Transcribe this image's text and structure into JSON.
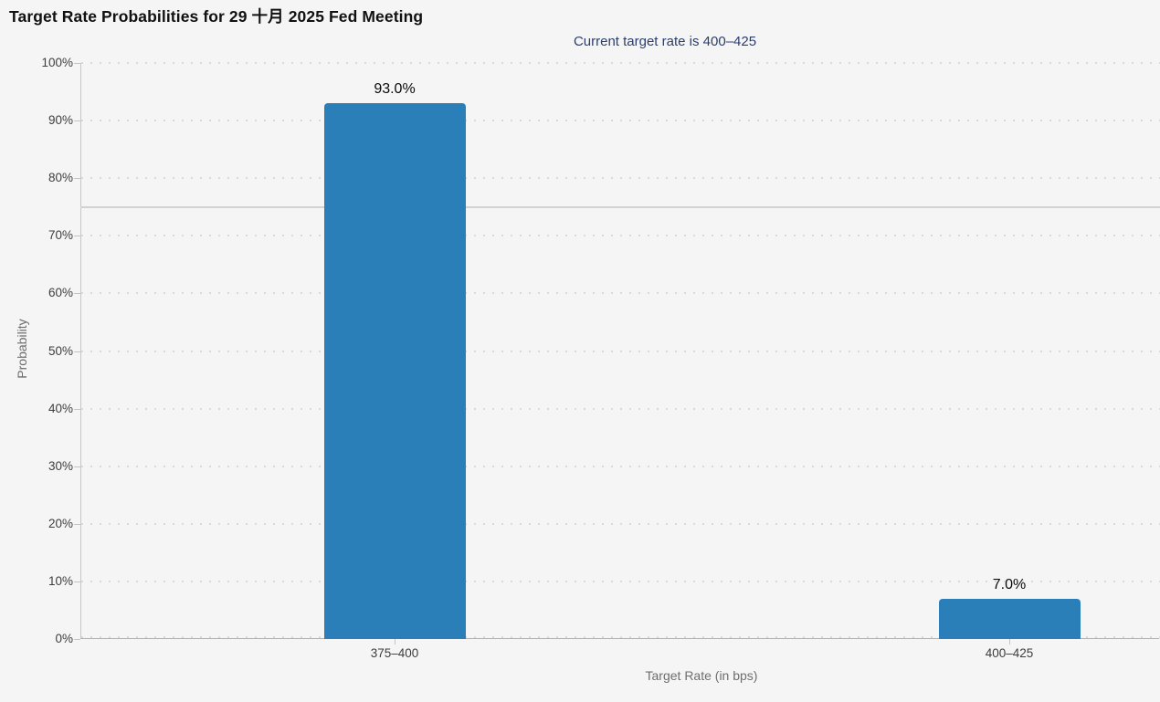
{
  "chart_data": {
    "type": "bar",
    "title": "Target Rate Probabilities for 29 十月 2025 Fed Meeting",
    "subtitle": "Current target rate is 400–425",
    "xlabel": "Target Rate (in bps)",
    "ylabel": "Probability",
    "categories": [
      "375–400",
      "400–425"
    ],
    "values": [
      93.0,
      7.0
    ],
    "value_labels": [
      "93.0%",
      "7.0%"
    ],
    "ylim": [
      0,
      100
    ],
    "ytick_values": [
      0,
      10,
      20,
      30,
      40,
      50,
      60,
      70,
      80,
      90,
      100
    ],
    "ytick_labels": [
      "0%",
      "10%",
      "20%",
      "30%",
      "40%",
      "50%",
      "60%",
      "70%",
      "80%",
      "90%",
      "100%"
    ],
    "grid": "dotted horizontal gridlines at every 10%",
    "legend": "none",
    "reference_line": {
      "value": 75,
      "color": "#d2d2d2"
    },
    "colors": {
      "bar": "#2a7fb8",
      "background": "#f5f5f5",
      "title_text": "#111111",
      "subtitle_text": "#2b3f6e",
      "axis_text": "#3d3d3d",
      "muted_text": "#6e6e6e"
    }
  }
}
